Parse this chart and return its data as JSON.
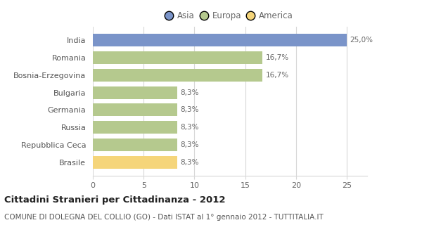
{
  "categories": [
    "Brasile",
    "Repubblica Ceca",
    "Russia",
    "Germania",
    "Bulgaria",
    "Bosnia-Erzegovina",
    "Romania",
    "India"
  ],
  "values": [
    8.3,
    8.3,
    8.3,
    8.3,
    8.3,
    16.7,
    16.7,
    25.0
  ],
  "bar_colors": [
    "#f5d57a",
    "#b5c98e",
    "#b5c98e",
    "#b5c98e",
    "#b5c98e",
    "#b5c98e",
    "#b5c98e",
    "#7a94c9"
  ],
  "labels": [
    "8,3%",
    "8,3%",
    "8,3%",
    "8,3%",
    "8,3%",
    "16,7%",
    "16,7%",
    "25,0%"
  ],
  "legend": [
    {
      "label": "Asia",
      "color": "#7a94c9"
    },
    {
      "label": "Europa",
      "color": "#b5c98e"
    },
    {
      "label": "America",
      "color": "#f5d57a"
    }
  ],
  "xlim": [
    0,
    27
  ],
  "xticks": [
    0,
    5,
    10,
    15,
    20,
    25
  ],
  "title": "Cittadini Stranieri per Cittadinanza - 2012",
  "subtitle": "COMUNE DI DOLEGNA DEL COLLIO (GO) - Dati ISTAT al 1° gennaio 2012 - TUTTITALIA.IT",
  "title_fontsize": 9.5,
  "subtitle_fontsize": 7.5,
  "background_color": "#ffffff",
  "bar_edge_color": "none",
  "grid_color": "#d8d8d8",
  "label_fontsize": 7.5,
  "tick_fontsize": 8,
  "bar_height": 0.72
}
